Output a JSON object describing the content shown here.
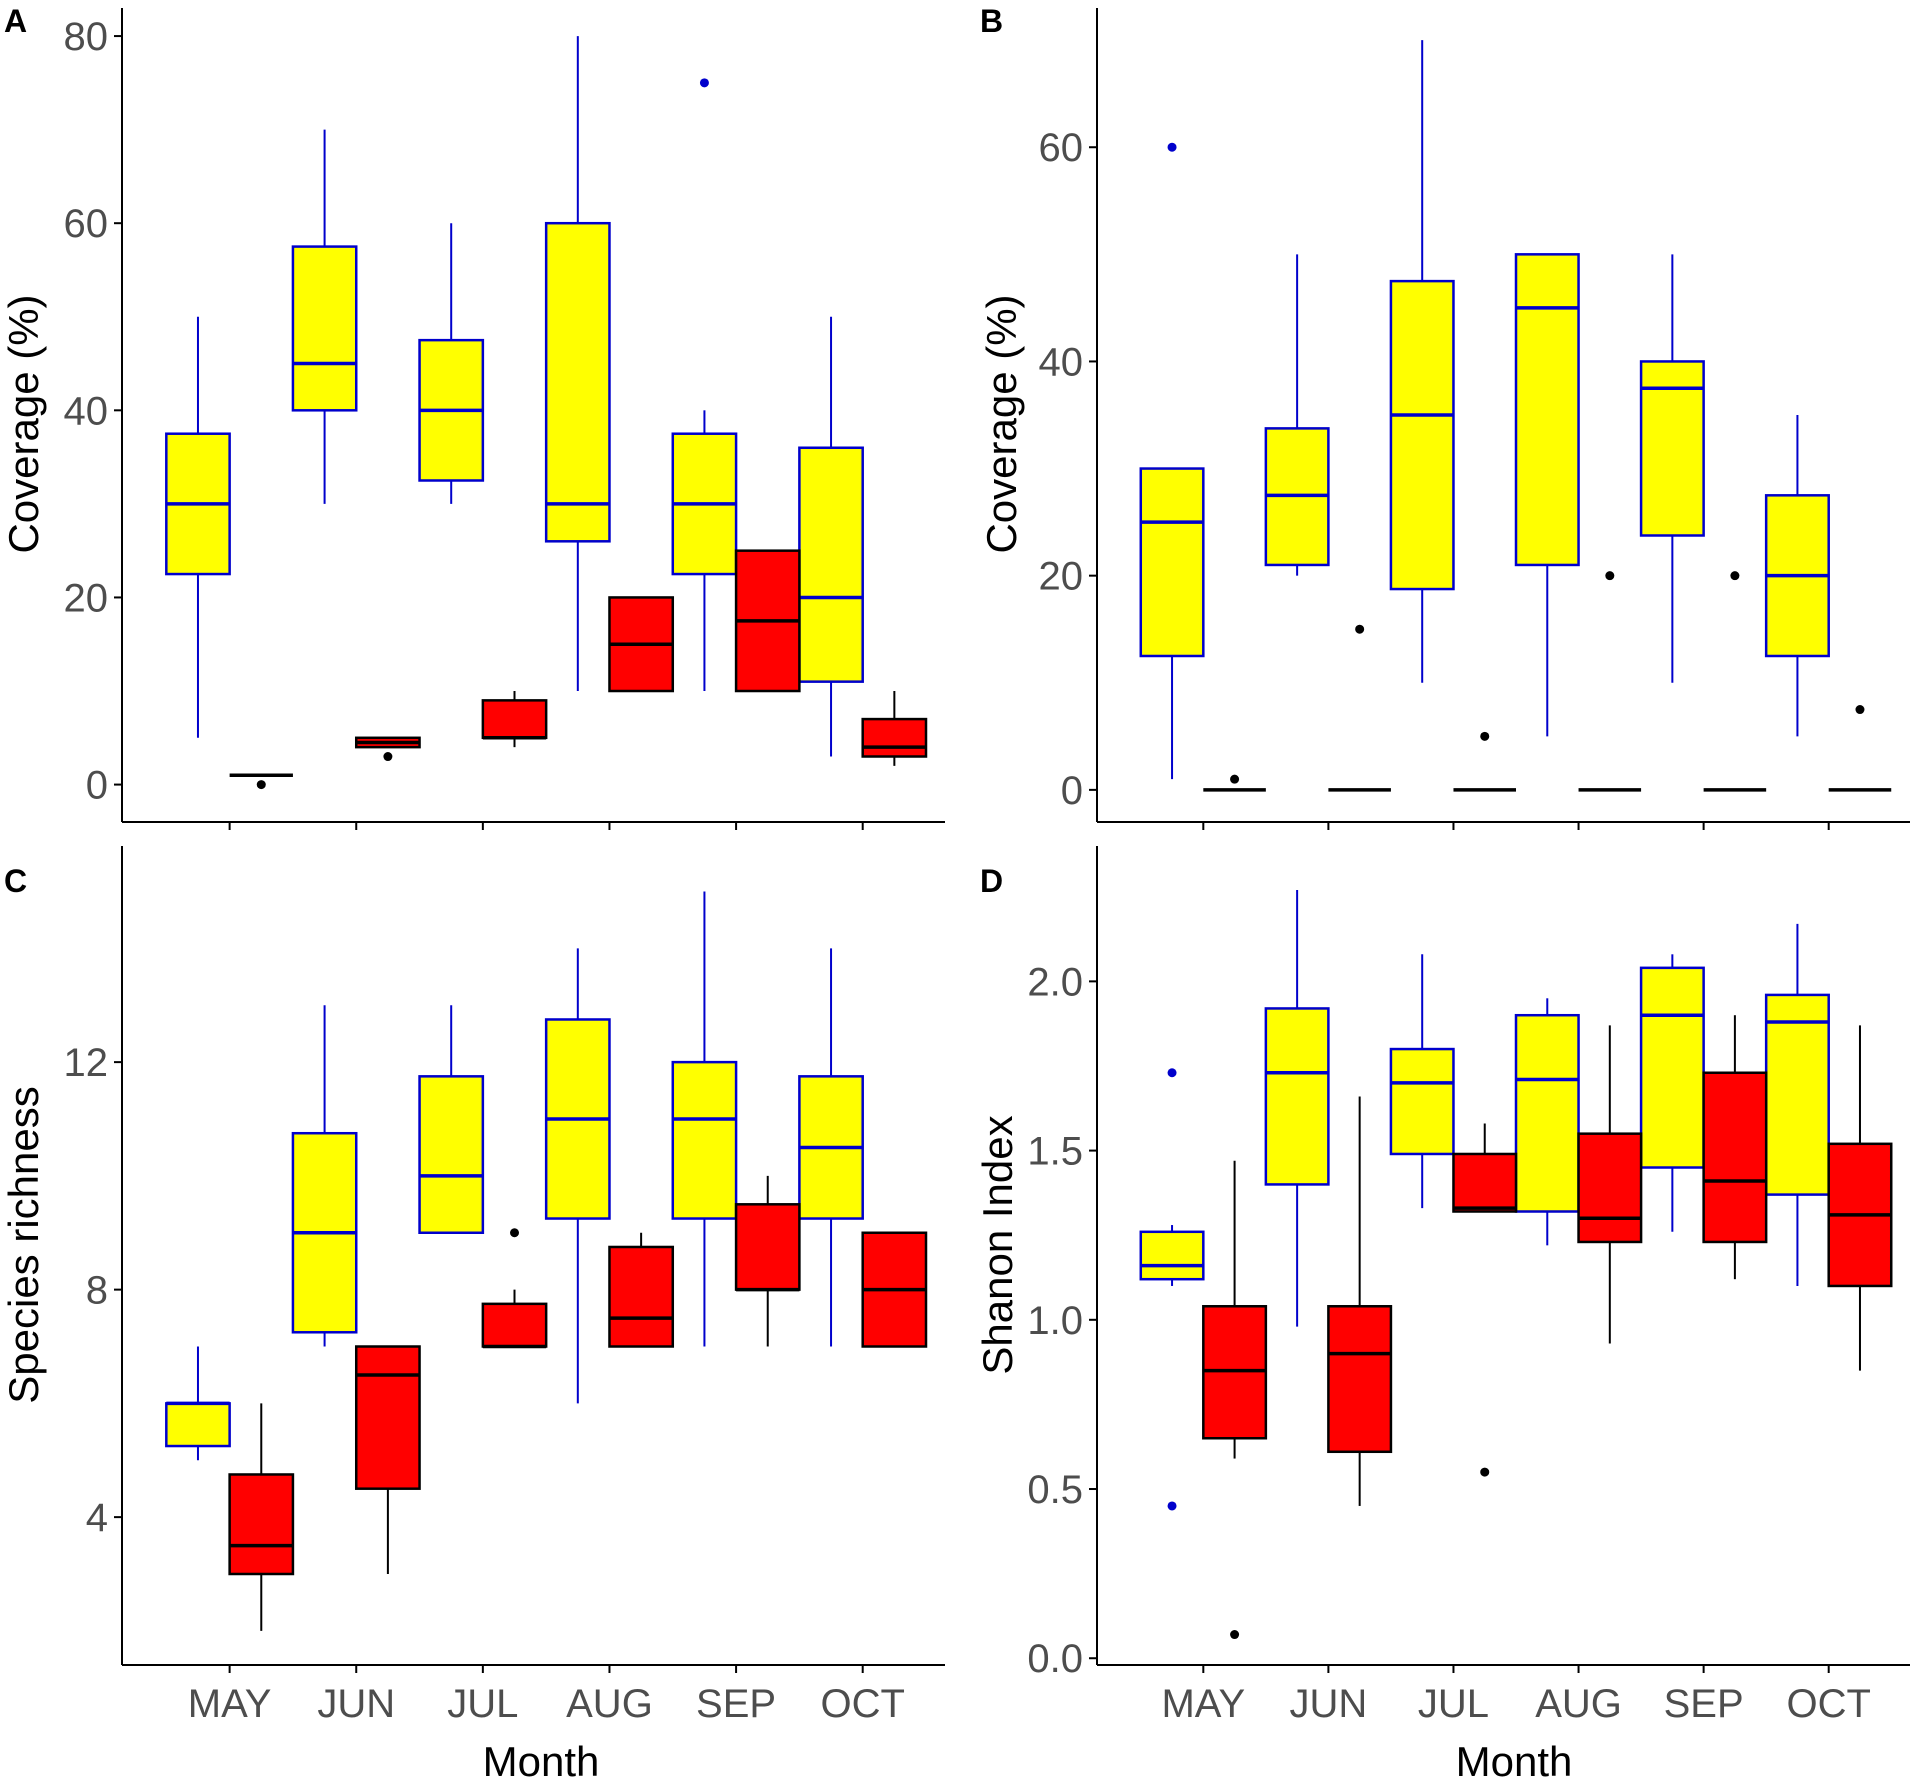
{
  "figure": {
    "colors": {
      "group_a_fill": "#ffff00",
      "group_a_line": "#0000cc",
      "group_b_fill": "#ff0000",
      "group_b_line": "#000000",
      "axis": "#000000",
      "tick_text": "#4d4d4d"
    }
  },
  "chart_data": [
    {
      "panel": "A",
      "type": "box",
      "ylabel": "Coverage (%)",
      "xlabel": "",
      "ylim": [
        -4,
        83
      ],
      "yticks": [
        0,
        20,
        40,
        60,
        80
      ],
      "categories": [
        "MAY",
        "JUN",
        "JUL",
        "AUG",
        "SEP",
        "OCT"
      ],
      "series": [
        {
          "name": "yellow",
          "boxes": [
            {
              "min": 5,
              "q1": 22.5,
              "median": 30,
              "q3": 37.5,
              "max": 50,
              "outliers": []
            },
            {
              "min": 30,
              "q1": 40,
              "median": 45,
              "q3": 57.5,
              "max": 70,
              "outliers": []
            },
            {
              "min": 30,
              "q1": 32.5,
              "median": 40,
              "q3": 47.5,
              "max": 60,
              "outliers": []
            },
            {
              "min": 10,
              "q1": 26,
              "median": 30,
              "q3": 60,
              "max": 80,
              "outliers": []
            },
            {
              "min": 10,
              "q1": 22.5,
              "median": 30,
              "q3": 37.5,
              "max": 40,
              "outliers": [
                75
              ]
            },
            {
              "min": 3,
              "q1": 11,
              "median": 20,
              "q3": 36,
              "max": 50,
              "outliers": []
            }
          ]
        },
        {
          "name": "red",
          "boxes": [
            {
              "min": 1,
              "q1": 1,
              "median": 1,
              "q3": 1,
              "max": 1,
              "outliers": [
                0
              ]
            },
            {
              "min": 4,
              "q1": 4,
              "median": 4.5,
              "q3": 5,
              "max": 5,
              "outliers": [
                3
              ]
            },
            {
              "min": 4,
              "q1": 5,
              "median": 5,
              "q3": 9,
              "max": 10,
              "outliers": []
            },
            {
              "min": 10,
              "q1": 10,
              "median": 15,
              "q3": 20,
              "max": 20,
              "outliers": []
            },
            {
              "min": 10,
              "q1": 10,
              "median": 17.5,
              "q3": 25,
              "max": 25,
              "outliers": []
            },
            {
              "min": 2,
              "q1": 3,
              "median": 4,
              "q3": 7,
              "max": 10,
              "outliers": []
            }
          ]
        }
      ]
    },
    {
      "panel": "B",
      "type": "box",
      "ylabel": "Coverage (%)",
      "xlabel": "",
      "ylim": [
        -3,
        73
      ],
      "yticks": [
        0,
        20,
        40,
        60
      ],
      "categories": [
        "MAY",
        "JUN",
        "JUL",
        "AUG",
        "SEP",
        "OCT"
      ],
      "series": [
        {
          "name": "yellow",
          "boxes": [
            {
              "min": 1,
              "q1": 12.5,
              "median": 25,
              "q3": 30,
              "max": 30,
              "outliers": [
                60
              ]
            },
            {
              "min": 20,
              "q1": 21,
              "median": 27.5,
              "q3": 33.75,
              "max": 50,
              "outliers": []
            },
            {
              "min": 10,
              "q1": 18.75,
              "median": 35,
              "q3": 47.5,
              "max": 70,
              "outliers": []
            },
            {
              "min": 5,
              "q1": 21,
              "median": 45,
              "q3": 50,
              "max": 50,
              "outliers": []
            },
            {
              "min": 10,
              "q1": 23.75,
              "median": 37.5,
              "q3": 40,
              "max": 50,
              "outliers": []
            },
            {
              "min": 5,
              "q1": 12.5,
              "median": 20,
              "q3": 27.5,
              "max": 35,
              "outliers": []
            }
          ]
        },
        {
          "name": "red",
          "boxes": [
            {
              "min": 0,
              "q1": 0,
              "median": 0,
              "q3": 0,
              "max": 0,
              "outliers": [
                1
              ]
            },
            {
              "min": 0,
              "q1": 0,
              "median": 0,
              "q3": 0,
              "max": 0,
              "outliers": [
                15
              ]
            },
            {
              "min": 0,
              "q1": 0,
              "median": 0,
              "q3": 0,
              "max": 0,
              "outliers": [
                5
              ]
            },
            {
              "min": 0,
              "q1": 0,
              "median": 0,
              "q3": 0,
              "max": 0,
              "outliers": [
                20
              ]
            },
            {
              "min": 0,
              "q1": 0,
              "median": 0,
              "q3": 0,
              "max": 0,
              "outliers": [
                20
              ]
            },
            {
              "min": 0,
              "q1": 0,
              "median": 0,
              "q3": 0,
              "max": 0,
              "outliers": [
                7.5
              ]
            }
          ]
        }
      ]
    },
    {
      "panel": "C",
      "type": "box",
      "ylabel": "Species richness",
      "xlabel": "Month",
      "ylim": [
        1.4,
        15.8
      ],
      "yticks": [
        4,
        8,
        12
      ],
      "categories": [
        "MAY",
        "JUN",
        "JUL",
        "AUG",
        "SEP",
        "OCT"
      ],
      "series": [
        {
          "name": "yellow",
          "boxes": [
            {
              "min": 5,
              "q1": 5.25,
              "median": 6,
              "q3": 6,
              "max": 7,
              "outliers": []
            },
            {
              "min": 7,
              "q1": 7.25,
              "median": 9,
              "q3": 10.75,
              "max": 13,
              "outliers": []
            },
            {
              "min": 9,
              "q1": 9,
              "median": 10,
              "q3": 11.75,
              "max": 13,
              "outliers": []
            },
            {
              "min": 6,
              "q1": 9.25,
              "median": 11,
              "q3": 12.75,
              "max": 14,
              "outliers": []
            },
            {
              "min": 7,
              "q1": 9.25,
              "median": 11,
              "q3": 12,
              "max": 15,
              "outliers": []
            },
            {
              "min": 7,
              "q1": 9.25,
              "median": 10.5,
              "q3": 11.75,
              "max": 14,
              "outliers": []
            }
          ]
        },
        {
          "name": "red",
          "boxes": [
            {
              "min": 2,
              "q1": 3,
              "median": 3.5,
              "q3": 4.75,
              "max": 6,
              "outliers": []
            },
            {
              "min": 3,
              "q1": 4.5,
              "median": 6.5,
              "q3": 7,
              "max": 7,
              "outliers": []
            },
            {
              "min": 7,
              "q1": 7,
              "median": 7,
              "q3": 7.75,
              "max": 8,
              "outliers": [
                9
              ]
            },
            {
              "min": 7,
              "q1": 7,
              "median": 7.5,
              "q3": 8.75,
              "max": 9,
              "outliers": []
            },
            {
              "min": 7,
              "q1": 8,
              "median": 8,
              "q3": 9.5,
              "max": 10,
              "outliers": []
            },
            {
              "min": 7,
              "q1": 7,
              "median": 8,
              "q3": 9,
              "max": 9,
              "outliers": []
            }
          ]
        }
      ]
    },
    {
      "panel": "D",
      "type": "box",
      "ylabel": "Shanon Index",
      "xlabel": "Month",
      "ylim": [
        -0.02,
        2.4
      ],
      "yticks": [
        0.0,
        0.5,
        1.0,
        1.5,
        2.0
      ],
      "ytick_labels": [
        "0.0",
        "0.5",
        "1.0",
        "1.5",
        "2.0"
      ],
      "categories": [
        "MAY",
        "JUN",
        "JUL",
        "AUG",
        "SEP",
        "OCT"
      ],
      "series": [
        {
          "name": "yellow",
          "boxes": [
            {
              "min": 1.1,
              "q1": 1.12,
              "median": 1.16,
              "q3": 1.26,
              "max": 1.28,
              "outliers": [
                1.73,
                0.45
              ]
            },
            {
              "min": 0.98,
              "q1": 1.4,
              "median": 1.73,
              "q3": 1.92,
              "max": 2.27,
              "outliers": []
            },
            {
              "min": 1.33,
              "q1": 1.49,
              "median": 1.7,
              "q3": 1.8,
              "max": 2.08,
              "outliers": []
            },
            {
              "min": 1.22,
              "q1": 1.32,
              "median": 1.71,
              "q3": 1.9,
              "max": 1.95,
              "outliers": []
            },
            {
              "min": 1.26,
              "q1": 1.45,
              "median": 1.9,
              "q3": 2.04,
              "max": 2.08,
              "outliers": []
            },
            {
              "min": 1.1,
              "q1": 1.37,
              "median": 1.88,
              "q3": 1.96,
              "max": 2.17,
              "outliers": []
            }
          ]
        },
        {
          "name": "red",
          "boxes": [
            {
              "min": 0.59,
              "q1": 0.65,
              "median": 0.85,
              "q3": 1.04,
              "max": 1.47,
              "outliers": [
                0.07
              ]
            },
            {
              "min": 0.45,
              "q1": 0.61,
              "median": 0.9,
              "q3": 1.04,
              "max": 1.66,
              "outliers": []
            },
            {
              "min": 1.32,
              "q1": 1.32,
              "median": 1.33,
              "q3": 1.49,
              "max": 1.58,
              "outliers": [
                0.55
              ]
            },
            {
              "min": 0.93,
              "q1": 1.23,
              "median": 1.3,
              "q3": 1.55,
              "max": 1.87,
              "outliers": []
            },
            {
              "min": 1.12,
              "q1": 1.23,
              "median": 1.41,
              "q3": 1.73,
              "max": 1.9,
              "outliers": []
            },
            {
              "min": 0.85,
              "q1": 1.1,
              "median": 1.31,
              "q3": 1.52,
              "max": 1.87,
              "outliers": []
            }
          ]
        }
      ]
    }
  ]
}
